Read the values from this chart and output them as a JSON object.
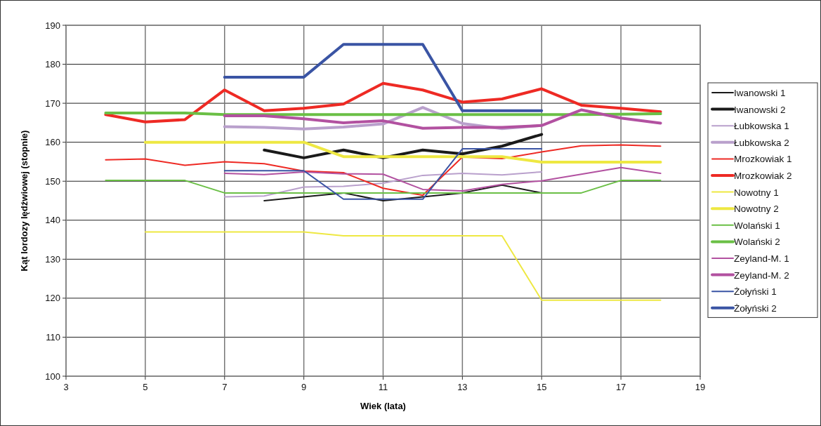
{
  "chart_data": {
    "type": "line",
    "xlabel": "Wiek (lata)",
    "ylabel": "Kąt lordozy lędźwiowej (stopnie)",
    "xlim": [
      3,
      19
    ],
    "xticks": [
      3,
      5,
      7,
      9,
      11,
      13,
      15,
      17,
      19
    ],
    "ylim": [
      100,
      190
    ],
    "yticks": [
      100,
      110,
      120,
      130,
      140,
      150,
      160,
      170,
      180,
      190
    ],
    "grid": true,
    "legend": "right",
    "marker": "none",
    "line_style": "solid",
    "series": [
      {
        "name": "Iwanowski 1",
        "color": "#1a1a1a",
        "x": [
          8,
          9,
          10,
          11,
          12,
          13,
          14,
          15
        ],
        "values": [
          145,
          146,
          147,
          145,
          146,
          147,
          149,
          147
        ]
      },
      {
        "name": "Iwanowski 2",
        "color": "#1a1a1a",
        "x": [
          8,
          9,
          10,
          11,
          12,
          13,
          14,
          15
        ],
        "values": [
          158,
          156,
          158,
          156,
          158,
          157,
          159,
          162
        ]
      },
      {
        "name": "Łubkowska 1",
        "color": "#b9a0cc",
        "x": [
          7,
          8,
          9,
          10,
          11,
          12,
          13,
          14,
          15
        ],
        "values": [
          146,
          146.2,
          148.5,
          148.7,
          149.5,
          151.5,
          152,
          151.6,
          152.4
        ]
      },
      {
        "name": "Łubkowska 2",
        "color": "#b9a0cc",
        "x": [
          7,
          8,
          9,
          10,
          11,
          12,
          13,
          14,
          15
        ],
        "values": [
          164,
          163.8,
          163.4,
          163.9,
          164.7,
          168.9,
          164.8,
          163.5,
          164.3
        ]
      },
      {
        "name": "Mrozkowiak 1",
        "color": "#ee2a24",
        "x": [
          4,
          5,
          6,
          7,
          8,
          9,
          10,
          11,
          12,
          13,
          14,
          15,
          16,
          17,
          18
        ],
        "values": [
          155.5,
          155.7,
          154.1,
          155,
          154.5,
          152.6,
          152.2,
          148.2,
          146.4,
          156.2,
          155.8,
          157.5,
          159.1,
          159.3,
          159
        ]
      },
      {
        "name": "Mrozkowiak 2",
        "color": "#ee2a24",
        "x": [
          4,
          5,
          6,
          7,
          8,
          9,
          10,
          11,
          12,
          13,
          14,
          15,
          16,
          17,
          18
        ],
        "values": [
          167.1,
          165.2,
          165.8,
          173.4,
          168.1,
          168.7,
          169.8,
          175.1,
          173.4,
          170.3,
          171.1,
          173.7,
          169.5,
          168.7,
          167.8
        ]
      },
      {
        "name": "Nowotny 1",
        "color": "#eee842",
        "x": [
          5,
          6,
          7,
          8,
          9,
          10,
          11,
          12,
          13,
          14,
          15,
          16,
          17,
          18
        ],
        "values": [
          137,
          137,
          137,
          137,
          137,
          136,
          136,
          136,
          136,
          136,
          119.5,
          119.5,
          119.5,
          119.5
        ]
      },
      {
        "name": "Nowotny 2",
        "color": "#eee842",
        "x": [
          5,
          6,
          7,
          8,
          9,
          10,
          11,
          12,
          13,
          14,
          15,
          16,
          17,
          18
        ],
        "values": [
          160,
          160,
          160,
          160,
          160,
          156.3,
          156.3,
          156.3,
          156.3,
          156.3,
          154.9,
          154.9,
          154.9,
          154.9
        ]
      },
      {
        "name": "Wolański 1",
        "color": "#6abf45",
        "x": [
          4,
          5,
          6,
          7,
          8,
          9,
          10,
          11,
          12,
          13,
          14,
          15,
          16,
          17,
          18
        ],
        "values": [
          150.2,
          150.2,
          150.2,
          147,
          147,
          147,
          147,
          147,
          147,
          147,
          147,
          147,
          147,
          150.2,
          150.2
        ]
      },
      {
        "name": "Wolański 2",
        "color": "#6abf45",
        "x": [
          4,
          5,
          6,
          7,
          8,
          9,
          10,
          11,
          12,
          13,
          14,
          15,
          16,
          17,
          18
        ],
        "values": [
          167.5,
          167.5,
          167.5,
          167.1,
          167.1,
          167.1,
          167.1,
          167.1,
          167.1,
          167.1,
          167.1,
          167.1,
          167.1,
          167.2,
          167.3
        ]
      },
      {
        "name": "Zeyland-M. 1",
        "color": "#b251a0",
        "x": [
          7,
          8,
          9,
          10,
          11,
          12,
          13,
          14,
          15,
          16,
          17,
          18
        ],
        "values": [
          152,
          151.7,
          152.4,
          151.9,
          151.8,
          147.9,
          147.5,
          149.2,
          150.1,
          151.8,
          153.5,
          152
        ]
      },
      {
        "name": "Zeyland-M. 2",
        "color": "#b251a0",
        "x": [
          7,
          8,
          9,
          10,
          11,
          12,
          13,
          14,
          15,
          16,
          17,
          18
        ],
        "values": [
          166.8,
          166.8,
          166,
          165,
          165.5,
          163.6,
          163.8,
          163.8,
          164.3,
          168.3,
          166.2,
          164.9
        ]
      },
      {
        "name": "Żołyński 1",
        "color": "#3a54a4",
        "x": [
          7,
          8,
          9,
          10,
          11,
          12,
          13,
          14,
          15
        ],
        "values": [
          152.7,
          152.7,
          152.7,
          145.4,
          145.4,
          145.4,
          158.3,
          158.3,
          158.3
        ]
      },
      {
        "name": "Żołyński 2",
        "color": "#3a54a4",
        "x": [
          7,
          8,
          9,
          10,
          11,
          12,
          13,
          14,
          15
        ],
        "values": [
          176.7,
          176.7,
          176.7,
          185.1,
          185.1,
          185.1,
          168.1,
          168.1,
          168.1
        ]
      }
    ]
  }
}
